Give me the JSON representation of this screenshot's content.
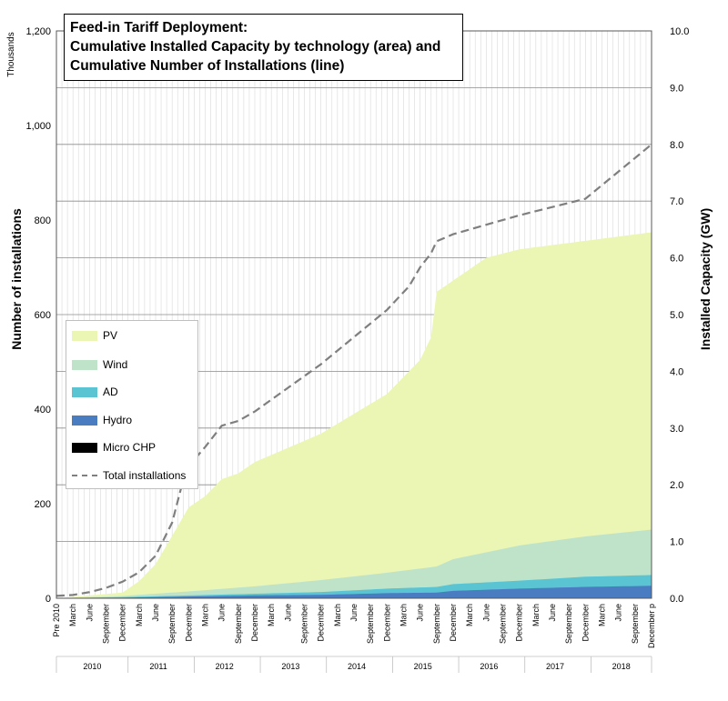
{
  "title_lines": [
    "Feed-in Tariff Deployment:",
    "Cumulative Installed Capacity by technology (area) and",
    "Cumulative Number of Installations (line)"
  ],
  "axes": {
    "left_label": "Number of installations",
    "left_unit": "Thousands",
    "right_label": "Installed Capacity (GW)",
    "left_ticks": [
      "0",
      "200",
      "400",
      "600",
      "800",
      "1,000",
      "1,200"
    ],
    "right_ticks": [
      "0.0",
      "1.0",
      "2.0",
      "3.0",
      "4.0",
      "5.0",
      "6.0",
      "7.0",
      "8.0",
      "9.0",
      "10.0"
    ],
    "x_month_labels": [
      "Pre 2010",
      "March",
      "June",
      "September",
      "December",
      "March",
      "June",
      "September",
      "December",
      "March",
      "June",
      "September",
      "December",
      "March",
      "June",
      "September",
      "December",
      "March",
      "June",
      "September",
      "December",
      "March",
      "June",
      "September",
      "December",
      "March",
      "June",
      "September",
      "December",
      "March",
      "June",
      "September",
      "December",
      "March",
      "June",
      "September",
      "December p"
    ],
    "x_year_labels": [
      "2010",
      "2011",
      "2012",
      "2013",
      "2014",
      "2015",
      "2016",
      "2017",
      "2018"
    ]
  },
  "legend": [
    {
      "label": "PV",
      "color": "#ebf5b4",
      "kind": "area"
    },
    {
      "label": "Wind",
      "color": "#bfe3c9",
      "kind": "area"
    },
    {
      "label": "AD",
      "color": "#5bc4d3",
      "kind": "area"
    },
    {
      "label": "Hydro",
      "color": "#4a7cc1",
      "kind": "area"
    },
    {
      "label": "Micro CHP",
      "color": "#000000",
      "kind": "area"
    },
    {
      "label": "Total installations",
      "color": "#7f7f7f",
      "kind": "line"
    }
  ],
  "chart_data": {
    "type": "area",
    "x_unit": "month index from Pre 2010 (0) to December 2018 (108)",
    "left_axis": {
      "label": "Number of installations",
      "unit": "Thousands",
      "ylim": [
        0,
        1200
      ]
    },
    "right_axis": {
      "label": "Installed Capacity (GW)",
      "ylim": [
        0,
        10
      ]
    },
    "grid": true,
    "legend_position": "left-middle",
    "capacity_series": [
      {
        "name": "Micro CHP",
        "x": [
          0,
          108
        ],
        "y": [
          0.0,
          0.0
        ]
      },
      {
        "name": "Hydro",
        "x": [
          0,
          12,
          24,
          36,
          48,
          60,
          69,
          72,
          84,
          96,
          108
        ],
        "y": [
          0.0,
          0.01,
          0.03,
          0.05,
          0.06,
          0.09,
          0.1,
          0.13,
          0.17,
          0.2,
          0.22
        ]
      },
      {
        "name": "AD",
        "x": [
          0,
          12,
          24,
          36,
          48,
          60,
          69,
          72,
          84,
          96,
          108
        ],
        "y": [
          0.0,
          0.02,
          0.05,
          0.08,
          0.11,
          0.17,
          0.2,
          0.25,
          0.31,
          0.38,
          0.41
        ]
      },
      {
        "name": "Wind",
        "x": [
          0,
          12,
          24,
          36,
          48,
          60,
          69,
          72,
          84,
          96,
          108
        ],
        "y": [
          0.0,
          0.04,
          0.12,
          0.21,
          0.32,
          0.45,
          0.56,
          0.69,
          0.93,
          1.09,
          1.21
        ]
      },
      {
        "name": "PV",
        "x": [
          0,
          12,
          15,
          18,
          21,
          24,
          27,
          30,
          33,
          36,
          48,
          60,
          66,
          68,
          69,
          72,
          78,
          84,
          96,
          108
        ],
        "y": [
          0.0,
          0.1,
          0.3,
          0.6,
          1.1,
          1.6,
          1.8,
          2.1,
          2.2,
          2.4,
          2.9,
          3.6,
          4.2,
          4.6,
          5.4,
          5.6,
          6.0,
          6.15,
          6.3,
          6.45
        ]
      }
    ],
    "line_series": {
      "name": "Total installations",
      "unit": "Thousands",
      "x": [
        0,
        3,
        6,
        9,
        12,
        15,
        18,
        21,
        23,
        24,
        27,
        30,
        33,
        36,
        48,
        60,
        64,
        66,
        68,
        69,
        72,
        84,
        96,
        108
      ],
      "y": [
        5,
        7,
        13,
        22,
        35,
        55,
        90,
        160,
        250,
        280,
        320,
        365,
        375,
        395,
        495,
        610,
        660,
        700,
        730,
        755,
        770,
        810,
        845,
        960
      ]
    }
  }
}
